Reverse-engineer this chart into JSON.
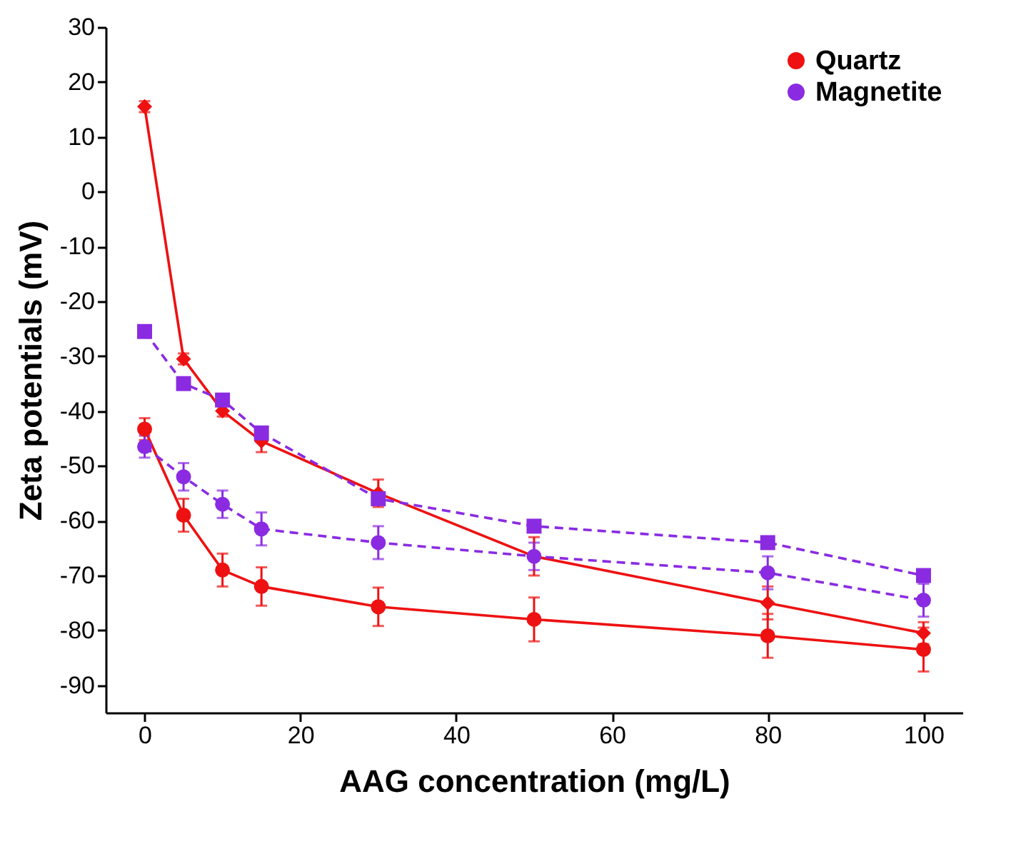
{
  "chart_data": {
    "type": "line",
    "xlabel": "AAG concentration (mg/L)",
    "ylabel": "Zeta potentials (mV)",
    "x": [
      0,
      5,
      10,
      15,
      30,
      50,
      80,
      100
    ],
    "xlim": [
      -5,
      105
    ],
    "xticks": [
      0,
      20,
      40,
      60,
      80,
      100
    ],
    "ylim": [
      -95,
      30
    ],
    "yticks": [
      -90,
      -80,
      -70,
      -60,
      -50,
      -40,
      -30,
      -20,
      -10,
      0,
      10,
      20,
      30
    ],
    "grid": false,
    "legend": "top right",
    "series": [
      {
        "name": "Quartz",
        "color": "#ee1111",
        "marker": "circle",
        "line_style": "solid",
        "values": [
          -43.3,
          -59,
          -69,
          -72,
          -75.7,
          -78,
          -81,
          -83.5
        ],
        "errors": [
          2,
          3,
          3,
          3.5,
          3.5,
          4,
          4,
          4
        ]
      },
      {
        "color": "#ee1111",
        "marker": "diamond",
        "line_style": "solid",
        "values": [
          15.5,
          -30.5,
          -40,
          -45.5,
          -55,
          -66.5,
          -75,
          -80.5
        ],
        "errors": [
          1,
          1,
          1,
          2,
          2.5,
          3.5,
          3,
          2
        ]
      },
      {
        "name": "Magnetite",
        "color": "#8a2be2",
        "marker": "circle",
        "line_style": "dashed",
        "values": [
          -46.5,
          -52,
          -57,
          -61.5,
          -64,
          -66.5,
          -69.5,
          -74.5
        ],
        "errors": [
          2,
          2.5,
          2.5,
          3,
          3,
          2.5,
          3,
          3
        ]
      },
      {
        "color": "#8a2be2",
        "marker": "square",
        "line_style": "dashed",
        "values": [
          -25.5,
          -35,
          -38,
          -44,
          -56,
          -61,
          -64,
          -70
        ],
        "errors": [
          1,
          1,
          1,
          1,
          1,
          1,
          1,
          1
        ]
      }
    ]
  }
}
